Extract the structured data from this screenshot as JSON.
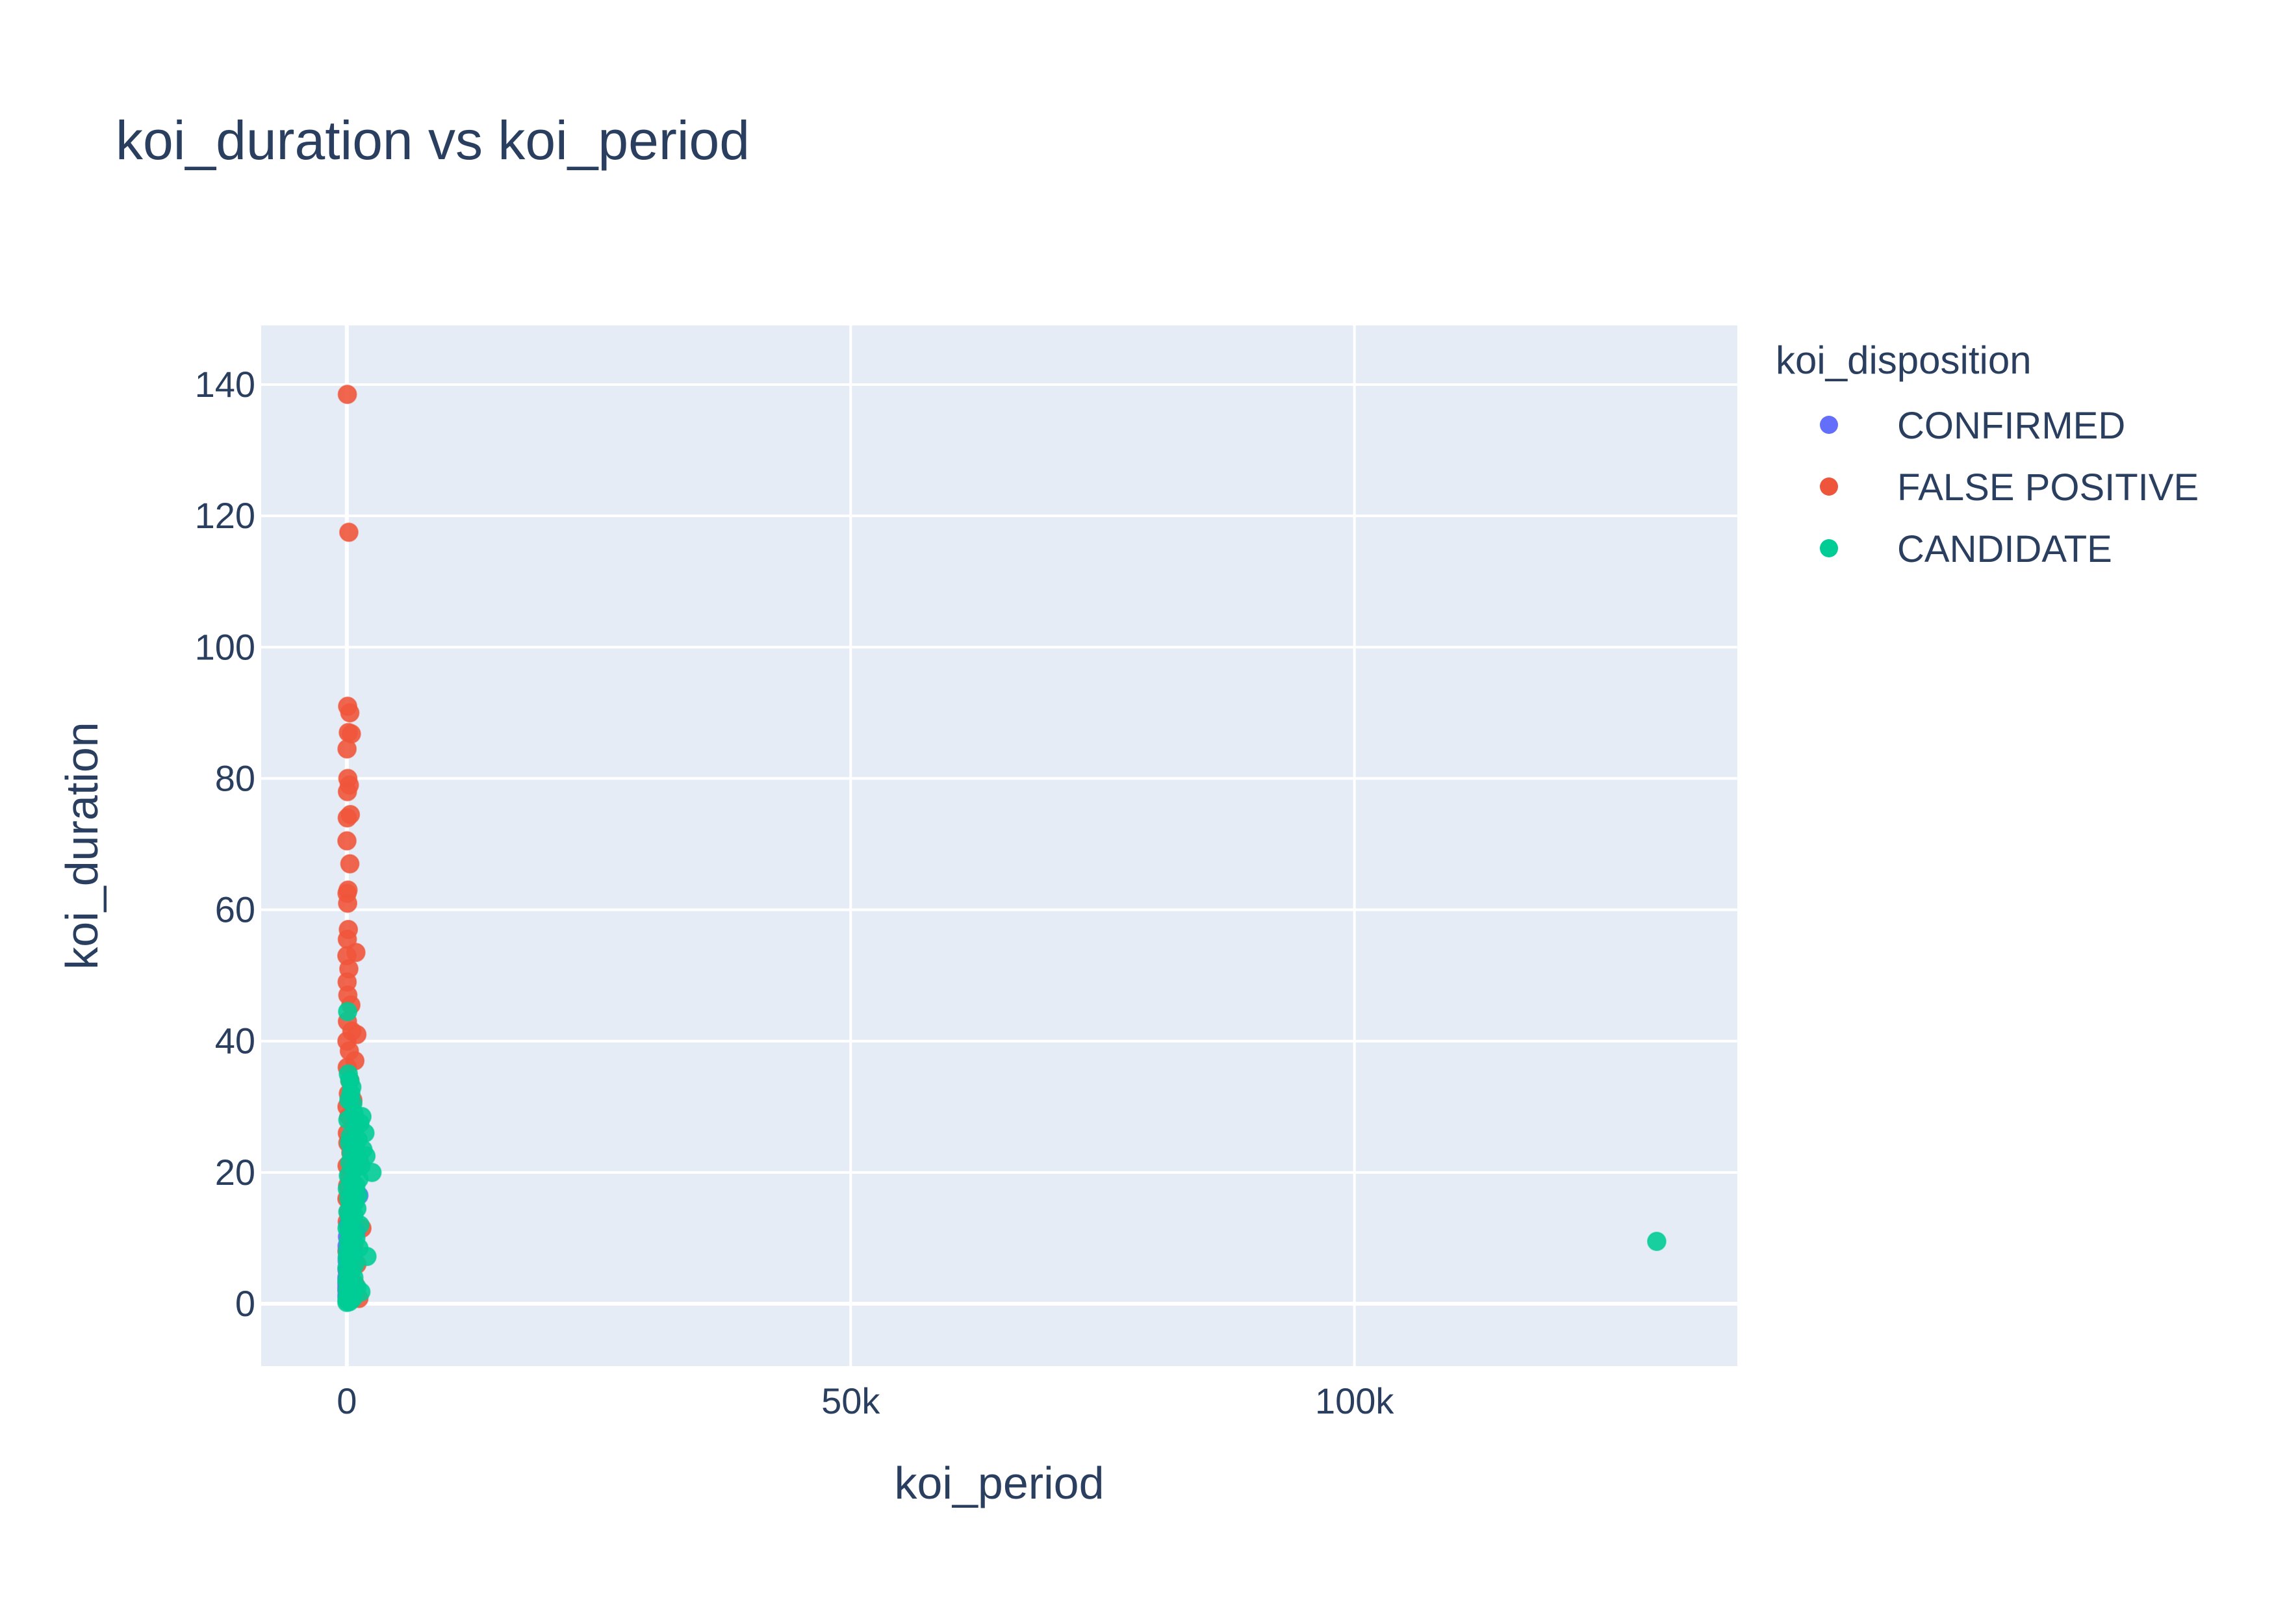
{
  "chart_data": {
    "type": "scatter",
    "title": "koi_duration vs koi_period",
    "xlabel": "koi_period",
    "ylabel": "koi_duration",
    "xlim": [
      -8500,
      138000
    ],
    "ylim": [
      -9.5,
      149
    ],
    "x_ticks": [
      {
        "value": 0,
        "label": "0"
      },
      {
        "value": 50000,
        "label": "50k"
      },
      {
        "value": 100000,
        "label": "100k"
      }
    ],
    "y_ticks": [
      {
        "value": 0,
        "label": "0"
      },
      {
        "value": 20,
        "label": "20"
      },
      {
        "value": 40,
        "label": "40"
      },
      {
        "value": 60,
        "label": "60"
      },
      {
        "value": 80,
        "label": "80"
      },
      {
        "value": 100,
        "label": "100"
      },
      {
        "value": 120,
        "label": "120"
      },
      {
        "value": 140,
        "label": "140"
      }
    ],
    "grid": true,
    "legend": {
      "title": "koi_disposition",
      "position": "right"
    },
    "series": [
      {
        "name": "CONFIRMED",
        "color": "#636efa",
        "points": [
          [
            1,
            1.2
          ],
          [
            3,
            2.5
          ],
          [
            5,
            3.1
          ],
          [
            8,
            4.0
          ],
          [
            12,
            2.0
          ],
          [
            20,
            5.2
          ],
          [
            35,
            6.5
          ],
          [
            50,
            3.8
          ],
          [
            80,
            7.2
          ],
          [
            120,
            4.6
          ],
          [
            200,
            8.0
          ],
          [
            300,
            6.0
          ],
          [
            450,
            9.5
          ],
          [
            600,
            7.8
          ],
          [
            900,
            11.0
          ],
          [
            1200,
            16.5
          ],
          [
            150,
            12.0
          ],
          [
            60,
            10.2
          ],
          [
            25,
            8.8
          ],
          [
            400,
            13.5
          ]
        ]
      },
      {
        "name": "FALSE POSITIVE",
        "color": "#ef553b",
        "points": [
          [
            50,
            138.5
          ],
          [
            200,
            117.5
          ],
          [
            80,
            91
          ],
          [
            300,
            90
          ],
          [
            150,
            87
          ],
          [
            450,
            86.8
          ],
          [
            20,
            84.5
          ],
          [
            100,
            80
          ],
          [
            250,
            79
          ],
          [
            60,
            78
          ],
          [
            350,
            74.5
          ],
          [
            40,
            74
          ],
          [
            10,
            70.5
          ],
          [
            300,
            67
          ],
          [
            120,
            63
          ],
          [
            20,
            62.5
          ],
          [
            80,
            61
          ],
          [
            150,
            57
          ],
          [
            50,
            55.5
          ],
          [
            900,
            53.5
          ],
          [
            5,
            53
          ],
          [
            200,
            51
          ],
          [
            30,
            49
          ],
          [
            100,
            47
          ],
          [
            400,
            45.5
          ],
          [
            60,
            43
          ],
          [
            500,
            41.5
          ],
          [
            1000,
            41
          ],
          [
            10,
            40
          ],
          [
            250,
            38.5
          ],
          [
            800,
            37
          ],
          [
            40,
            36
          ],
          [
            300,
            34
          ],
          [
            150,
            32
          ],
          [
            600,
            31
          ],
          [
            15,
            30
          ],
          [
            200,
            28.5
          ],
          [
            700,
            27
          ],
          [
            50,
            26
          ],
          [
            100,
            24.5
          ],
          [
            400,
            23
          ],
          [
            1200,
            22
          ],
          [
            20,
            21
          ],
          [
            300,
            19.5
          ],
          [
            80,
            18
          ],
          [
            900,
            17
          ],
          [
            5,
            16
          ],
          [
            500,
            15
          ],
          [
            150,
            14
          ],
          [
            1500,
            11.5
          ],
          [
            40,
            12.5
          ],
          [
            250,
            10.5
          ],
          [
            700,
            9
          ],
          [
            10,
            8
          ],
          [
            350,
            7
          ],
          [
            1000,
            6
          ],
          [
            60,
            5
          ],
          [
            200,
            4
          ],
          [
            800,
            3
          ],
          [
            30,
            2
          ],
          [
            400,
            1.2
          ],
          [
            1200,
            0.8
          ],
          [
            100,
            0.5
          ],
          [
            600,
            2.5
          ]
        ]
      },
      {
        "name": "CANDIDATE",
        "color": "#00cc96",
        "points": [
          [
            130000,
            9.5
          ],
          [
            80,
            44.5
          ],
          [
            150,
            35
          ],
          [
            300,
            34
          ],
          [
            500,
            33
          ],
          [
            400,
            32
          ],
          [
            200,
            31
          ],
          [
            600,
            30.5
          ],
          [
            700,
            29
          ],
          [
            1500,
            28.5
          ],
          [
            100,
            28
          ],
          [
            1300,
            27.5
          ],
          [
            900,
            27
          ],
          [
            1800,
            26
          ],
          [
            350,
            25.5
          ],
          [
            1100,
            25
          ],
          [
            250,
            24.5
          ],
          [
            800,
            24
          ],
          [
            1600,
            23.5
          ],
          [
            450,
            23
          ],
          [
            1900,
            22.5
          ],
          [
            1000,
            22
          ],
          [
            300,
            21.5
          ],
          [
            1400,
            21
          ],
          [
            2500,
            20
          ],
          [
            700,
            20.5
          ],
          [
            150,
            19.5
          ],
          [
            1200,
            19
          ],
          [
            500,
            18.5
          ],
          [
            900,
            18
          ],
          [
            50,
            17.5
          ],
          [
            600,
            17
          ],
          [
            1100,
            16.5
          ],
          [
            200,
            16
          ],
          [
            800,
            15.5
          ],
          [
            400,
            15
          ],
          [
            1000,
            14.5
          ],
          [
            100,
            14
          ],
          [
            700,
            13.5
          ],
          [
            300,
            13
          ],
          [
            500,
            12.5
          ],
          [
            1300,
            12
          ],
          [
            20,
            11.5
          ],
          [
            250,
            11
          ],
          [
            650,
            10.5
          ],
          [
            900,
            10
          ],
          [
            150,
            9.5
          ],
          [
            400,
            9
          ],
          [
            1200,
            8.5
          ],
          [
            60,
            8
          ],
          [
            550,
            7.5
          ],
          [
            2000,
            7.2
          ],
          [
            30,
            7
          ],
          [
            300,
            6.5
          ],
          [
            800,
            6
          ],
          [
            10,
            5.5
          ],
          [
            450,
            5
          ],
          [
            120,
            4.5
          ],
          [
            700,
            4
          ],
          [
            5,
            3.5
          ],
          [
            200,
            3
          ],
          [
            1000,
            2.5
          ],
          [
            40,
            2
          ],
          [
            350,
            1.5
          ],
          [
            80,
            1
          ],
          [
            15,
            0.6
          ],
          [
            250,
            0.3
          ],
          [
            600,
            0.8
          ],
          [
            1400,
            1.8
          ],
          [
            2,
            0.2
          ]
        ]
      }
    ]
  }
}
